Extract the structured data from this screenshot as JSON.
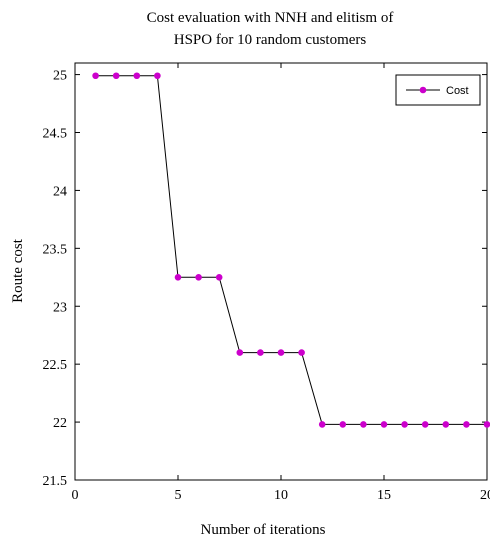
{
  "chart_data": {
    "type": "line",
    "title": [
      "Cost evaluation with NNH and elitism of",
      "HSPO for 10 random customers"
    ],
    "xlabel": "Number of iterations",
    "ylabel": "Route cost",
    "xlim": [
      0,
      20
    ],
    "ylim": [
      21.5,
      25.1
    ],
    "xticks": [
      0,
      5,
      10,
      15,
      20
    ],
    "yticks": [
      21.5,
      22,
      22.5,
      23,
      23.5,
      24,
      24.5,
      25
    ],
    "grid": false,
    "legend_position": "top-right",
    "series": [
      {
        "name": "Cost",
        "color": "#cc00cc",
        "line_color": "#000000",
        "marker": "circle",
        "x": [
          1,
          2,
          3,
          4,
          5,
          6,
          7,
          8,
          9,
          10,
          11,
          12,
          13,
          14,
          15,
          16,
          17,
          18,
          19,
          20
        ],
        "y": [
          24.99,
          24.99,
          24.99,
          24.99,
          23.25,
          23.25,
          23.25,
          22.6,
          22.6,
          22.6,
          22.6,
          21.98,
          21.98,
          21.98,
          21.98,
          21.98,
          21.98,
          21.98,
          21.98,
          21.98
        ]
      }
    ]
  }
}
